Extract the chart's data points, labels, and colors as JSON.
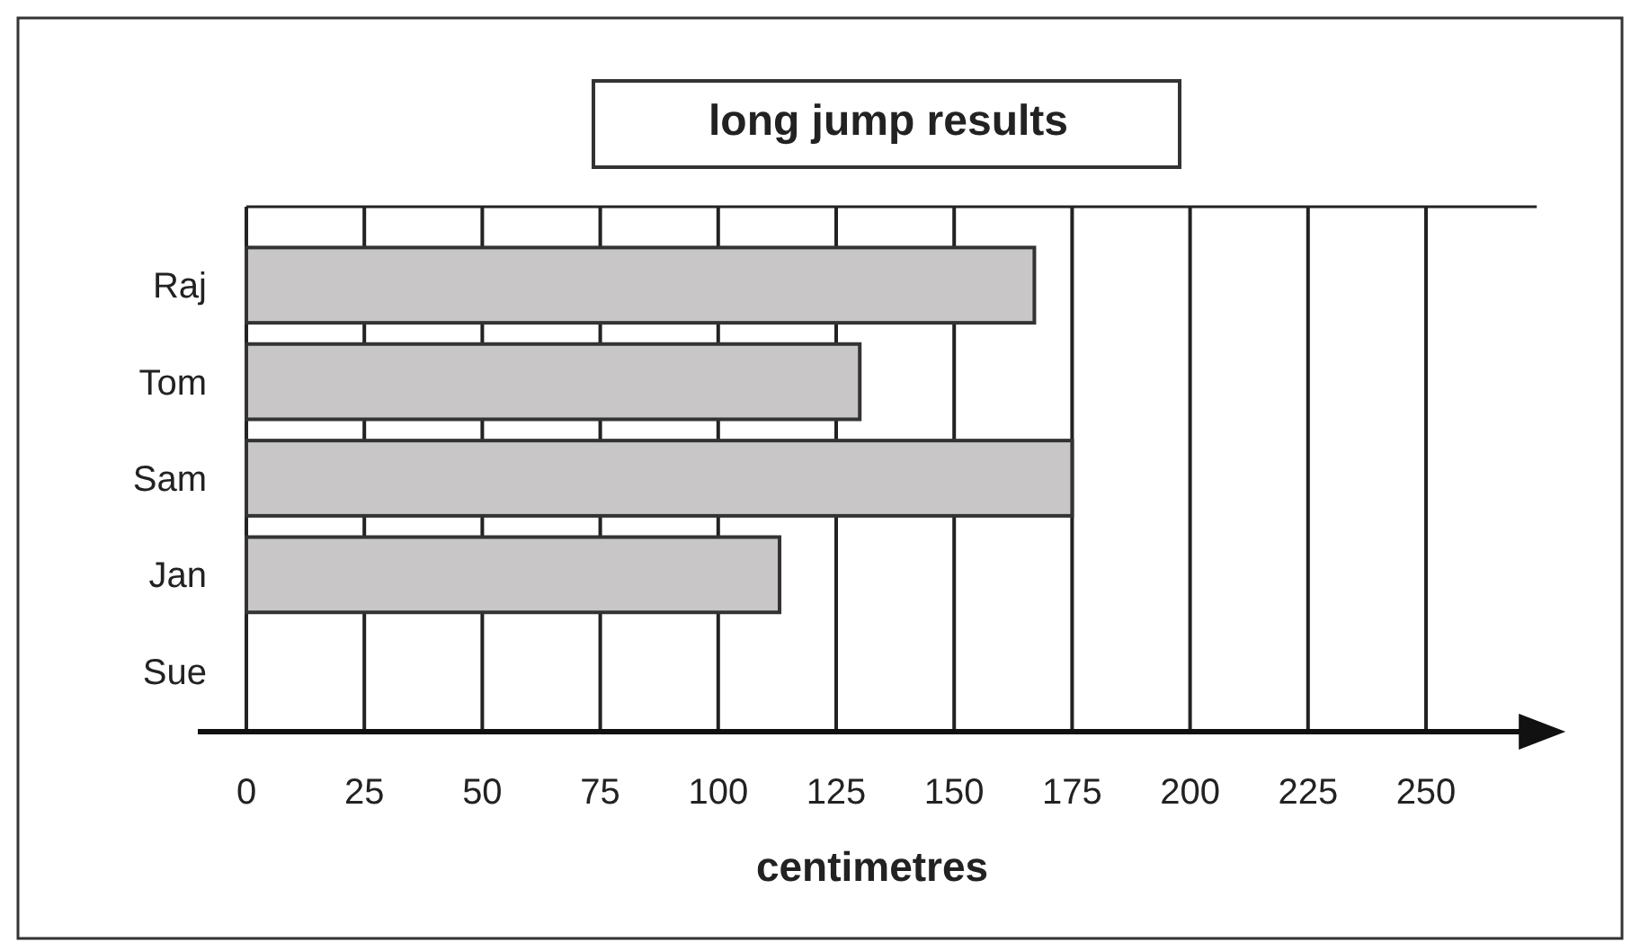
{
  "chart_data": {
    "type": "bar",
    "orientation": "horizontal",
    "title": "long jump results",
    "xlabel": "centimetres",
    "categories": [
      "Raj",
      "Tom",
      "Sam",
      "Jan",
      "Sue"
    ],
    "values": [
      167,
      130,
      175,
      113,
      null
    ],
    "color": "#c8c6c7",
    "xlim": [
      0,
      275
    ],
    "xticks": [
      0,
      25,
      50,
      75,
      100,
      125,
      150,
      175,
      200,
      225,
      250
    ],
    "grid": "x"
  }
}
